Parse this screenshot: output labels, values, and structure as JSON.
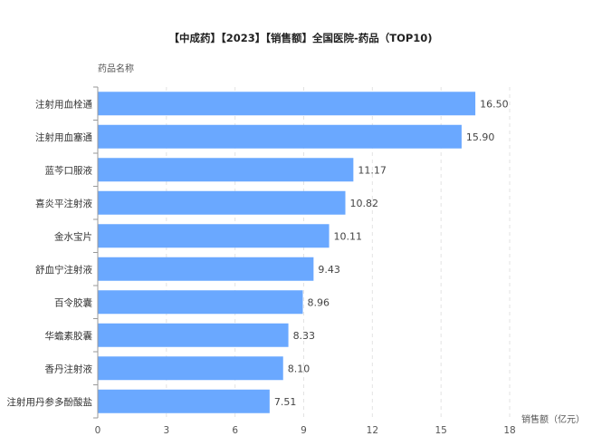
{
  "chart_data": {
    "type": "bar",
    "orientation": "horizontal",
    "title": "【中成药】【2023】【销售额】全国医院-药品（TOP10)",
    "ylabel": "药品名称",
    "xlabel": "销售额（亿元）",
    "categories": [
      "注射用血栓通",
      "注射用血塞通",
      "蓝芩口服液",
      "喜炎平注射液",
      "金水宝片",
      "舒血宁注射液",
      "百令胶囊",
      "华蟾素胶囊",
      "香丹注射液",
      "注射用丹参多酚酸盐"
    ],
    "values": [
      16.5,
      15.9,
      11.17,
      10.82,
      10.11,
      9.43,
      8.96,
      8.33,
      8.1,
      7.51
    ],
    "value_labels": [
      "16.50",
      "15.90",
      "11.17",
      "10.82",
      "10.11",
      "9.43",
      "8.96",
      "8.33",
      "8.10",
      "7.51"
    ],
    "xlim": [
      0,
      18
    ],
    "xticks": [
      "0",
      "3",
      "6",
      "9",
      "12",
      "15",
      "18"
    ],
    "grid": true,
    "bar_color": "#6aa8ff"
  }
}
